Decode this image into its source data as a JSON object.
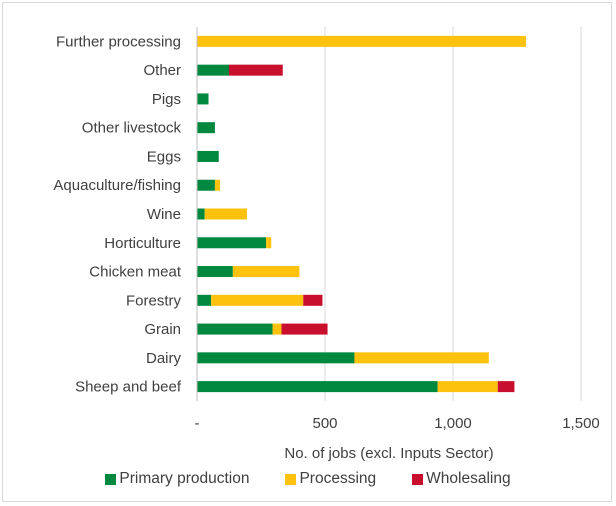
{
  "chart_data": {
    "type": "bar",
    "orientation": "horizontal",
    "stacked": true,
    "categories": [
      "Further processing",
      "Other",
      "Pigs",
      "Other livestock",
      "Eggs",
      "Aquaculture/fishing",
      "Wine",
      "Horticulture",
      "Chicken meat",
      "Forestry",
      "Grain",
      "Dairy",
      "Sheep and beef"
    ],
    "series": [
      {
        "name": "Primary production",
        "color": "#00883f",
        "values": [
          0,
          125,
          45,
          70,
          85,
          70,
          30,
          270,
          140,
          55,
          295,
          615,
          940
        ]
      },
      {
        "name": "Processing",
        "color": "#fdc20e",
        "values": [
          1285,
          0,
          0,
          0,
          0,
          20,
          165,
          20,
          260,
          360,
          35,
          525,
          235
        ]
      },
      {
        "name": "Wholesaling",
        "color": "#c8102e",
        "values": [
          0,
          210,
          0,
          0,
          0,
          0,
          0,
          0,
          0,
          75,
          180,
          0,
          65
        ]
      }
    ],
    "xlabel": "No. of jobs (excl. Inputs Sector)",
    "xlim": [
      0,
      1500
    ],
    "xticks": [
      0,
      500,
      1000,
      1500
    ],
    "xtick_labels": [
      "-",
      "500",
      "1,000",
      "1,500"
    ],
    "grid": "vertical",
    "legend": "bottom"
  }
}
